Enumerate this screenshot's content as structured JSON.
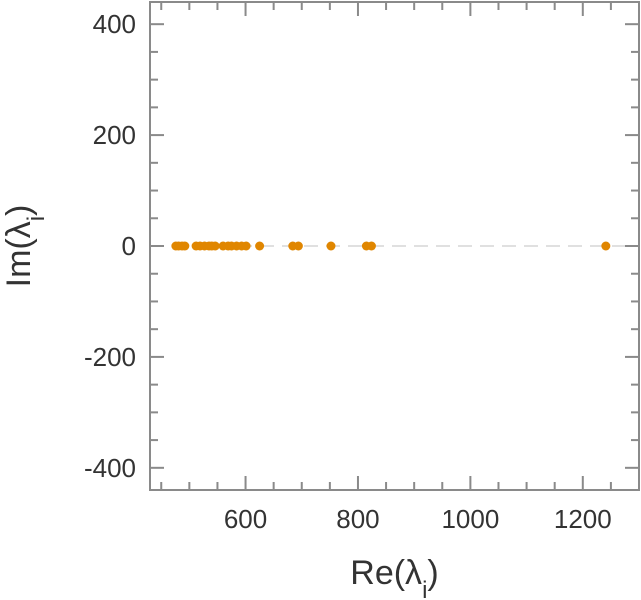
{
  "chart_data": {
    "type": "scatter",
    "title": "",
    "xlabel": "Re(λi)",
    "ylabel": "Im(λi)",
    "xlim": [
      430,
      1300
    ],
    "ylim": [
      -440,
      440
    ],
    "xticks": [
      600,
      800,
      1000,
      1200
    ],
    "xtick_labels": [
      "600",
      "800",
      "1000",
      "1200"
    ],
    "yticks": [
      -400,
      -200,
      0,
      200,
      400
    ],
    "ytick_labels": [
      "-400",
      "-200",
      "0",
      "200",
      "400"
    ],
    "grid": false,
    "reference_line": {
      "y": 0,
      "style": "dashed",
      "color": "#e0e0e0"
    },
    "marker_color": "#e08600",
    "series": [
      {
        "name": "",
        "points": [
          {
            "x": 476,
            "y": 0
          },
          {
            "x": 481,
            "y": 0
          },
          {
            "x": 487,
            "y": 0
          },
          {
            "x": 492,
            "y": 0
          },
          {
            "x": 512,
            "y": 0
          },
          {
            "x": 519,
            "y": 0
          },
          {
            "x": 527,
            "y": 0
          },
          {
            "x": 535,
            "y": 0
          },
          {
            "x": 540,
            "y": 0
          },
          {
            "x": 546,
            "y": 0
          },
          {
            "x": 560,
            "y": 0
          },
          {
            "x": 569,
            "y": 0
          },
          {
            "x": 575,
            "y": 0
          },
          {
            "x": 584,
            "y": 0
          },
          {
            "x": 593,
            "y": 0
          },
          {
            "x": 601,
            "y": 0
          },
          {
            "x": 625,
            "y": 0
          },
          {
            "x": 684,
            "y": 0
          },
          {
            "x": 694,
            "y": 0
          },
          {
            "x": 752,
            "y": 0
          },
          {
            "x": 815,
            "y": 0
          },
          {
            "x": 824,
            "y": 0
          },
          {
            "x": 1241,
            "y": 0
          }
        ]
      }
    ]
  }
}
